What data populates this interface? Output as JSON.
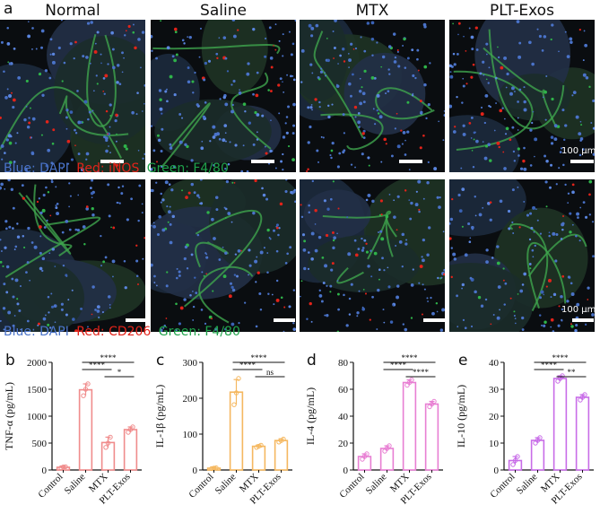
{
  "panel_letters": {
    "a": "a",
    "b": "b",
    "c": "c",
    "d": "d",
    "e": "e"
  },
  "groups": [
    "Normal",
    "Saline",
    "MTX",
    "PLT-Exos"
  ],
  "scale_bar_label": "100 µm",
  "legend_row1": {
    "blue": "Blue: DAPI",
    "red": "Red: iNOS",
    "green": "Green: F4/80"
  },
  "legend_row2": {
    "blue": "Blue: DAPI",
    "red": "Red: CD206",
    "green": "Green: F4/80"
  },
  "colors": {
    "blue": "#4a73c9",
    "red": "#e2231a",
    "green": "#1fa34a",
    "tnf": "#f08c8c",
    "il1b": "#f5b860",
    "il4": "#e87fd3",
    "il10": "#c86de8"
  },
  "chart_data": [
    {
      "type": "bar",
      "title": "",
      "ylabel": "TNF-α (pg/mL)",
      "categories": [
        "Control",
        "Saline",
        "MTX",
        "PLT-Exos"
      ],
      "values": [
        50,
        1490,
        510,
        750
      ],
      "errors": [
        20,
        110,
        100,
        50
      ],
      "points": [
        [
          40,
          55,
          60
        ],
        [
          1380,
          1500,
          1600
        ],
        [
          420,
          500,
          610
        ],
        [
          700,
          750,
          800
        ]
      ],
      "ylim": [
        0,
        2000
      ],
      "yticks": [
        0,
        500,
        1000,
        1500,
        2000
      ],
      "sig": [
        {
          "from": 1,
          "to": 2,
          "label": "****"
        },
        {
          "from": 1,
          "to": 3,
          "label": "****"
        },
        {
          "from": 2,
          "to": 3,
          "label": "*"
        }
      ]
    },
    {
      "type": "bar",
      "title": "",
      "ylabel": "IL-1β (pg/mL)",
      "categories": [
        "Control",
        "Saline",
        "MTX",
        "PLT-Exos"
      ],
      "values": [
        5,
        217,
        66,
        82
      ],
      "errors": [
        3,
        35,
        4,
        5
      ],
      "points": [
        [
          4,
          5,
          6
        ],
        [
          182,
          215,
          255
        ],
        [
          63,
          66,
          69
        ],
        [
          78,
          82,
          86
        ]
      ],
      "ylim": [
        0,
        300
      ],
      "yticks": [
        0,
        100,
        200,
        300
      ],
      "sig": [
        {
          "from": 1,
          "to": 2,
          "label": "****"
        },
        {
          "from": 1,
          "to": 3,
          "label": "****"
        },
        {
          "from": 2,
          "to": 3,
          "label": "ns"
        }
      ]
    },
    {
      "type": "bar",
      "title": "",
      "ylabel": "IL-4 (pg/mL)",
      "categories": [
        "Control",
        "Saline",
        "MTX",
        "PLT-Exos"
      ],
      "values": [
        10,
        16,
        65,
        49
      ],
      "errors": [
        2,
        2,
        2,
        2
      ],
      "points": [
        [
          8,
          10,
          12
        ],
        [
          14,
          16,
          18
        ],
        [
          63,
          65,
          67
        ],
        [
          47,
          49,
          51
        ]
      ],
      "ylim": [
        0,
        80
      ],
      "yticks": [
        0,
        20,
        40,
        60,
        80
      ],
      "sig": [
        {
          "from": 1,
          "to": 2,
          "label": "****"
        },
        {
          "from": 1,
          "to": 3,
          "label": "****"
        },
        {
          "from": 2,
          "to": 3,
          "label": "****"
        }
      ]
    },
    {
      "type": "bar",
      "title": "",
      "ylabel": "IL-10 (pg/mL)",
      "categories": [
        "Control",
        "Saline",
        "MTX",
        "PLT-Exos"
      ],
      "values": [
        3.5,
        11,
        34,
        27
      ],
      "errors": [
        1.5,
        1,
        1,
        1
      ],
      "points": [
        [
          2,
          3.5,
          5
        ],
        [
          10,
          11,
          12
        ],
        [
          33,
          34,
          35
        ],
        [
          26,
          27,
          28
        ]
      ],
      "ylim": [
        0,
        40
      ],
      "yticks": [
        0,
        10,
        20,
        30,
        40
      ],
      "sig": [
        {
          "from": 1,
          "to": 2,
          "label": "****"
        },
        {
          "from": 1,
          "to": 3,
          "label": "****"
        },
        {
          "from": 2,
          "to": 3,
          "label": "**"
        }
      ]
    }
  ]
}
